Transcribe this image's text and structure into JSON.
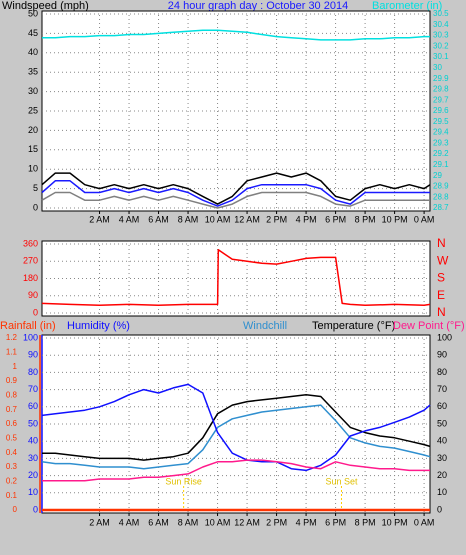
{
  "chart_data": [
    {
      "type": "line",
      "title": "24 hour graph day : October 30 2014",
      "y_label": "Windspeed (mph)",
      "y2_label": "Barometer (in)",
      "x": [
        -1.9,
        -1,
        0,
        1,
        2,
        3,
        4,
        5,
        6,
        7,
        8,
        9,
        10,
        11,
        12,
        13,
        14,
        15,
        16,
        17,
        18,
        19,
        20,
        21,
        22,
        23,
        24,
        24.4
      ],
      "xlim": [
        -1.9,
        24.4
      ],
      "xticks": [
        {
          "value": 2,
          "label": "2 AM"
        },
        {
          "value": 4,
          "label": "4 AM"
        },
        {
          "value": 6,
          "label": "6 AM"
        },
        {
          "value": 8,
          "label": "8 AM"
        },
        {
          "value": 10,
          "label": "10 AM"
        },
        {
          "value": 12,
          "label": "12 AM"
        },
        {
          "value": 14,
          "label": "2 PM"
        },
        {
          "value": 16,
          "label": "4 PM"
        },
        {
          "value": 18,
          "label": "6 PM"
        },
        {
          "value": 20,
          "label": "8 PM"
        },
        {
          "value": 22,
          "label": "10 PM"
        },
        {
          "value": 24,
          "label": "0 AM"
        }
      ],
      "ylim": [
        0,
        50
      ],
      "yticks": [
        0,
        5,
        10,
        15,
        20,
        25,
        30,
        35,
        40,
        45,
        50
      ],
      "y2lim": [
        28.7,
        30.5
      ],
      "y2ticks": [
        28.7,
        28.8,
        28.9,
        29,
        29.1,
        29.2,
        29.3,
        29.4,
        29.5,
        29.6,
        29.7,
        29.8,
        29.9,
        30,
        30.1,
        30.2,
        30.3,
        30.4,
        30.5
      ],
      "grid": true,
      "series": [
        {
          "color": "#808080",
          "values": [
            2,
            4,
            4,
            2,
            2,
            3,
            2,
            3,
            2,
            3,
            2,
            1,
            0,
            1,
            3,
            4,
            4,
            4,
            4,
            3,
            1,
            0.5,
            2,
            2,
            2,
            2,
            2,
            2
          ]
        },
        {
          "color": "#000000",
          "values": [
            6,
            9,
            9,
            6,
            5,
            6,
            5,
            6,
            5,
            6,
            5,
            3,
            1,
            3,
            7,
            8,
            9,
            8,
            9,
            7,
            3,
            2,
            5,
            6,
            5,
            6,
            5,
            6
          ]
        },
        {
          "color": "#1a1aff",
          "values": [
            4,
            7,
            7,
            4,
            4,
            5,
            4,
            5,
            4,
            5,
            4,
            2,
            0.5,
            2,
            5,
            6,
            6,
            6,
            6,
            5,
            2,
            1,
            4,
            4,
            4,
            4,
            4,
            4
          ]
        },
        {
          "color": "#00e0e0",
          "axis": "y2",
          "values": [
            30.28,
            30.28,
            30.29,
            30.29,
            30.3,
            30.3,
            30.31,
            30.31,
            30.32,
            30.33,
            30.34,
            30.35,
            30.35,
            30.34,
            30.33,
            30.31,
            30.29,
            30.28,
            30.27,
            30.26,
            30.26,
            30.26,
            30.27,
            30.27,
            30.28,
            30.28,
            30.29,
            30.29
          ]
        }
      ]
    },
    {
      "type": "line",
      "x": [
        -1.9,
        0,
        2,
        4,
        6,
        8,
        10,
        10.05,
        11,
        12,
        13,
        14,
        15,
        16,
        17,
        18,
        18.45,
        19,
        20,
        22,
        24,
        24.4
      ],
      "xlim": [
        -1.9,
        24.4
      ],
      "ylim": [
        0,
        360
      ],
      "yticks": [
        0,
        90,
        180,
        270,
        360
      ],
      "y2lim": [
        0,
        360
      ],
      "y2ticks": [
        {
          "value": 360,
          "label": "N"
        },
        {
          "value": 270,
          "label": "W"
        },
        {
          "value": 180,
          "label": "S"
        },
        {
          "value": 90,
          "label": "E"
        },
        {
          "value": 0,
          "label": "N"
        }
      ],
      "grid": true,
      "series": [
        {
          "color": "#ff0000",
          "values": [
            50,
            45,
            40,
            45,
            40,
            45,
            45,
            330,
            280,
            270,
            260,
            255,
            270,
            285,
            290,
            290,
            50,
            45,
            40,
            45,
            40,
            45
          ]
        }
      ]
    },
    {
      "type": "line",
      "y_label": "Rainfall (in)",
      "y3_label": "Humidity (%)",
      "y2_label": "Temperature (°F)",
      "x": [
        -1.9,
        -1,
        0,
        1,
        2,
        3,
        4,
        5,
        6,
        7,
        8,
        9,
        10,
        11,
        12,
        13,
        14,
        15,
        16,
        17,
        18,
        19,
        20,
        21,
        22,
        23,
        24,
        24.4
      ],
      "xlim": [
        -1.9,
        24.4
      ],
      "xticks": [
        {
          "value": 2,
          "label": "2 AM"
        },
        {
          "value": 4,
          "label": "4 AM"
        },
        {
          "value": 6,
          "label": "6 AM"
        },
        {
          "value": 8,
          "label": "8 AM"
        },
        {
          "value": 10,
          "label": "10 AM"
        },
        {
          "value": 12,
          "label": "12 AM"
        },
        {
          "value": 14,
          "label": "2 PM"
        },
        {
          "value": 16,
          "label": "4 PM"
        },
        {
          "value": 18,
          "label": "6 PM"
        },
        {
          "value": 20,
          "label": "8 PM"
        },
        {
          "value": 22,
          "label": "10 PM"
        },
        {
          "value": 24,
          "label": "0 AM"
        }
      ],
      "ylim": [
        0,
        1.2
      ],
      "yticks": [
        0,
        0.1,
        0.2,
        0.3,
        0.4,
        0.5,
        0.6,
        0.7,
        0.8,
        0.9,
        1,
        1.1,
        1.2
      ],
      "y3lim": [
        0,
        100
      ],
      "y3ticks": [
        0,
        10,
        20,
        30,
        40,
        50,
        60,
        70,
        80,
        90,
        100
      ],
      "y2lim": [
        0,
        100
      ],
      "y2ticks": [
        0,
        10,
        20,
        30,
        40,
        50,
        60,
        70,
        80,
        90,
        100
      ],
      "grid": true,
      "annotations": [
        {
          "text": "Sun Rise",
          "x": 7.7
        },
        {
          "text": "Sun Set",
          "x": 18.4
        }
      ],
      "series": [
        {
          "color": "#ff3300",
          "values": [
            0,
            0,
            0,
            0,
            0,
            0,
            0,
            0,
            0,
            0,
            0,
            0,
            0,
            0,
            0,
            0,
            0,
            0,
            0,
            0,
            0,
            0,
            0,
            0,
            0,
            0,
            0,
            0
          ]
        },
        {
          "name": "Windchill",
          "color": "#2f8fcf",
          "axis": "y2",
          "values": [
            28,
            27,
            27,
            26,
            25,
            25,
            25,
            24,
            25,
            26,
            27,
            35,
            48,
            53,
            55,
            57,
            58,
            59,
            60,
            61,
            52,
            42,
            39,
            37,
            36,
            34,
            32,
            31
          ]
        },
        {
          "color": "#000000",
          "axis": "y2",
          "values": [
            33,
            33,
            32,
            31,
            30,
            30,
            30,
            29,
            30,
            31,
            33,
            42,
            56,
            61,
            63,
            64,
            65,
            66,
            67,
            66,
            57,
            48,
            45,
            43,
            42,
            40,
            38,
            37
          ]
        },
        {
          "color": "#1010ff",
          "axis": "y3",
          "values": [
            55,
            56,
            57,
            58,
            60,
            63,
            67,
            70,
            68,
            71,
            73,
            68,
            45,
            33,
            29,
            28,
            28,
            24,
            23,
            26,
            32,
            43,
            46,
            48,
            51,
            54,
            58,
            61
          ]
        },
        {
          "name": "Dew Point (°F)",
          "color": "#ff1a8c",
          "axis": "y2",
          "values": [
            17,
            17,
            17,
            17,
            18,
            18,
            18,
            19,
            19,
            20,
            21,
            25,
            28,
            28,
            29,
            29,
            28,
            27,
            25,
            24,
            28,
            26,
            25,
            24,
            24,
            23,
            23,
            23
          ]
        }
      ]
    }
  ]
}
